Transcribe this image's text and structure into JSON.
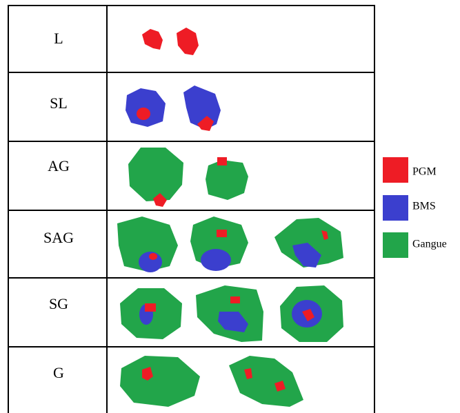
{
  "table": {
    "rows": [
      {
        "label": "L"
      },
      {
        "label": "SL"
      },
      {
        "label": "AG"
      },
      {
        "label": "SAG"
      },
      {
        "label": "SG"
      },
      {
        "label": "G"
      }
    ]
  },
  "legend": {
    "items": [
      {
        "label": "PGM"
      },
      {
        "label": "BMS"
      },
      {
        "label": "Gangue"
      }
    ]
  }
}
